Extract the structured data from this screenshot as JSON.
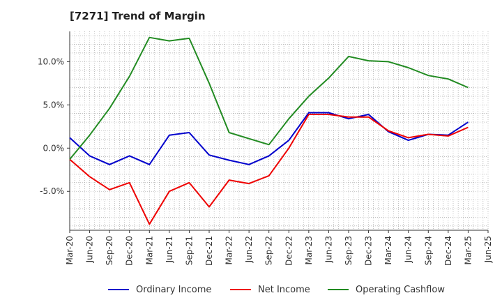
{
  "title": "[7271]  Trend of Margin",
  "chart_data": {
    "type": "line",
    "title": "[7271]  Trend of Margin",
    "xlabel": "",
    "ylabel": "",
    "categories": [
      "Mar-20",
      "Jun-20",
      "Sep-20",
      "Dec-20",
      "Mar-21",
      "Jun-21",
      "Sep-21",
      "Dec-21",
      "Mar-22",
      "Jun-22",
      "Sep-22",
      "Dec-22",
      "Mar-23",
      "Jun-23",
      "Sep-23",
      "Dec-23",
      "Mar-24",
      "Jun-24",
      "Sep-24",
      "Dec-24",
      "Mar-25",
      "Jun-25"
    ],
    "ylim": [
      -9.5,
      13.5
    ],
    "yticks": [
      -5,
      0,
      5,
      10
    ],
    "ytick_labels": [
      "-5.0%",
      "0.0%",
      "5.0%",
      "10.0%"
    ],
    "grid": true,
    "legend_position": "bottom",
    "series": [
      {
        "name": "Ordinary Income",
        "color": "#0000cc",
        "values": [
          1.2,
          -0.9,
          -1.9,
          -0.9,
          -1.9,
          1.5,
          1.8,
          -0.8,
          -1.4,
          -1.9,
          -0.9,
          0.9,
          4.1,
          4.1,
          3.4,
          3.9,
          1.9,
          0.9,
          1.6,
          1.5,
          3.0,
          null
        ]
      },
      {
        "name": "Net Income",
        "color": "#ee0000",
        "values": [
          -1.3,
          -3.3,
          -4.8,
          -4.0,
          -8.8,
          -5.0,
          -4.0,
          -6.8,
          -3.7,
          -4.1,
          -3.2,
          0.0,
          3.9,
          3.9,
          3.6,
          3.6,
          2.0,
          1.2,
          1.6,
          1.4,
          2.4,
          null
        ]
      },
      {
        "name": "Operating Cashflow",
        "color": "#228b22",
        "values": [
          -1.3,
          1.5,
          4.6,
          8.3,
          12.8,
          12.4,
          12.7,
          7.5,
          1.8,
          1.1,
          0.4,
          3.4,
          6.0,
          8.1,
          10.6,
          10.1,
          10.0,
          9.3,
          8.4,
          8.0,
          7.0,
          null
        ]
      }
    ]
  }
}
